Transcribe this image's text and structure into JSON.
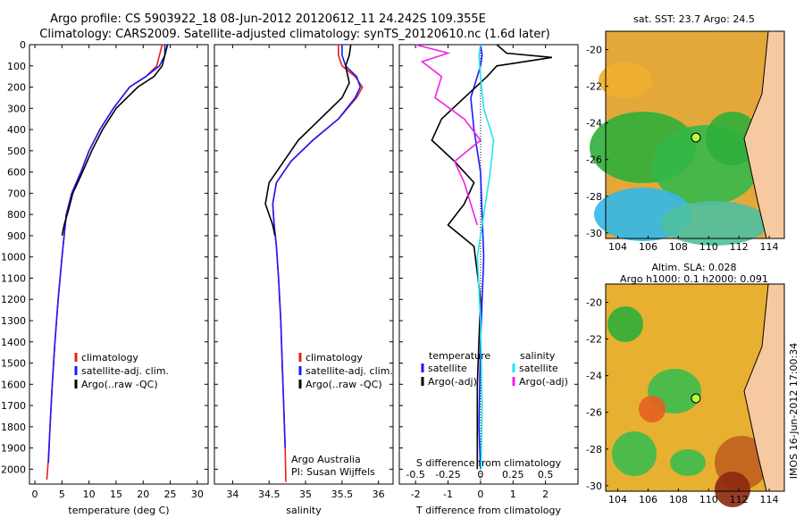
{
  "header": {
    "line1": "Argo profile: CS 5903922_18 08-Jun-2012 20120612_11 24.242S 109.355E",
    "line2": "Climatology: CARS2009. Satellite-adjusted climatology: synTS_20120610.nc (1.6d later)"
  },
  "side_text": "IMOS 16-Jun-2012 17:00:34",
  "colors": {
    "climatology": "#e8201a",
    "satellite": "#1a1aff",
    "argo": "#000000",
    "sat_salinity": "#22e6ee",
    "argo_salinity": "#f020e8"
  },
  "chart_data": [
    {
      "type": "line",
      "xlabel": "temperature (deg C)",
      "ylabel": "",
      "xlim": [
        -1,
        32
      ],
      "ylim": [
        2070,
        0
      ],
      "xticks": [
        "0",
        "5",
        "10",
        "15",
        "20",
        "25",
        "30"
      ],
      "xtick_values": [
        0,
        5,
        10,
        15,
        20,
        25,
        30
      ],
      "yticks": [
        "0",
        "100",
        "200",
        "300",
        "400",
        "500",
        "600",
        "700",
        "800",
        "900",
        "1000",
        "1100",
        "1200",
        "1300",
        "1400",
        "1500",
        "1600",
        "1700",
        "1800",
        "1900",
        "2000"
      ],
      "ytick_values": [
        0,
        100,
        200,
        300,
        400,
        500,
        600,
        700,
        800,
        900,
        1000,
        1100,
        1200,
        1300,
        1400,
        1500,
        1600,
        1700,
        1800,
        1900,
        2000
      ],
      "legend": [
        "climatology",
        "satellite-adj. clim.",
        "Argo(..raw -QC)"
      ],
      "series": [
        {
          "name": "climatology",
          "color": "#e8201a",
          "x": [
            23.5,
            23,
            22.5,
            20.5,
            17.5,
            14.5,
            12,
            10,
            8.5,
            6.8,
            5.8,
            5,
            4.3,
            3.7,
            3.2,
            2.8,
            2.5,
            2.2
          ],
          "y": [
            0,
            50,
            100,
            150,
            200,
            300,
            400,
            500,
            600,
            700,
            800,
            1000,
            1200,
            1400,
            1600,
            1800,
            1950,
            2050
          ]
        },
        {
          "name": "satellite-adj. clim.",
          "color": "#1a1aff",
          "x": [
            24,
            24,
            23,
            20.5,
            17.5,
            14.5,
            12,
            10,
            8.5,
            6.8,
            5.8,
            5,
            4.3,
            3.7,
            3.2,
            2.8,
            2.5
          ],
          "y": [
            0,
            50,
            100,
            150,
            200,
            300,
            400,
            500,
            600,
            700,
            800,
            1000,
            1200,
            1400,
            1600,
            1800,
            1970
          ]
        },
        {
          "name": "Argo(..raw -QC)",
          "color": "#000000",
          "x": [
            24.5,
            24,
            23.5,
            22,
            19,
            15,
            12.5,
            10.5,
            8.8,
            7,
            6.2,
            5.4,
            5
          ],
          "y": [
            0,
            50,
            100,
            150,
            200,
            300,
            400,
            500,
            600,
            700,
            780,
            850,
            900
          ]
        }
      ]
    },
    {
      "type": "line",
      "xlabel": "salinity",
      "xlim": [
        33.75,
        36.2
      ],
      "ylim": [
        2070,
        0
      ],
      "xticks": [
        "34",
        "34.5",
        "35",
        "35.5",
        "36"
      ],
      "xtick_values": [
        34,
        34.5,
        35,
        35.5,
        36
      ],
      "legend": [
        "climatology",
        "satellite-adj. clim.",
        "Argo(..raw -QC)"
      ],
      "annotation": [
        "Argo Australia",
        "PI: Susan Wijffels"
      ],
      "series": [
        {
          "name": "climatology",
          "color": "#e8201a",
          "x": [
            35.45,
            35.45,
            35.5,
            35.68,
            35.78,
            35.7,
            35.45,
            35.1,
            34.8,
            34.6,
            34.55,
            34.57,
            34.6,
            34.63,
            34.66,
            34.68,
            34.7,
            34.72,
            34.73
          ],
          "y": [
            0,
            50,
            100,
            150,
            200,
            250,
            350,
            450,
            550,
            650,
            750,
            850,
            950,
            1100,
            1300,
            1500,
            1700,
            1900,
            2060
          ]
        },
        {
          "name": "satellite-adj. clim.",
          "color": "#1a1aff",
          "x": [
            35.5,
            35.5,
            35.55,
            35.7,
            35.75,
            35.68,
            35.45,
            35.1,
            34.8,
            34.6,
            34.55,
            34.57,
            34.6,
            34.63,
            34.66,
            34.68,
            34.7,
            34.72
          ],
          "y": [
            0,
            50,
            100,
            150,
            200,
            250,
            350,
            450,
            550,
            650,
            750,
            850,
            950,
            1100,
            1300,
            1500,
            1700,
            1900
          ]
        },
        {
          "name": "Argo(..raw -QC)",
          "color": "#000000",
          "x": [
            35.62,
            35.6,
            35.55,
            35.6,
            35.5,
            35.2,
            34.9,
            34.7,
            34.5,
            34.45,
            34.5,
            34.55,
            34.58
          ],
          "y": [
            0,
            50,
            100,
            180,
            250,
            350,
            450,
            550,
            650,
            750,
            800,
            850,
            900
          ]
        }
      ]
    },
    {
      "type": "line",
      "xlabel": "T difference from climatology",
      "xlabel2": "S difference from climatology",
      "xlim": [
        -2.5,
        3
      ],
      "ylim": [
        2070,
        0
      ],
      "xticks": [
        "-2",
        "-1",
        "0",
        "1",
        "2"
      ],
      "xtick_values": [
        -2,
        -1,
        0,
        1,
        2
      ],
      "xticks_top": [
        "-0.5",
        "-0.25",
        "0",
        "0.25",
        "0.5"
      ],
      "legend": [
        "temperature",
        "satellite",
        "Argo(-adj)",
        "salinity",
        "satellite",
        "Argo(-adj)"
      ],
      "series": [
        {
          "name": "satellite",
          "color": "#1a1aff",
          "x": [
            0,
            0.05,
            0,
            -0.3,
            -0.2,
            0,
            0.05,
            0.1,
            0,
            -0.05,
            0
          ],
          "y": [
            0,
            50,
            100,
            250,
            400,
            600,
            800,
            1000,
            1400,
            1800,
            2000
          ]
        },
        {
          "name": "Argo(-adj)",
          "color": "#000000",
          "x": [
            0.5,
            0.8,
            2.2,
            0.5,
            0.2,
            -0.5,
            -1.2,
            -1.5,
            -0.8,
            -0.2,
            -0.5,
            -1,
            -0.2,
            0,
            -0.1,
            -0.1
          ],
          "y": [
            0,
            40,
            60,
            100,
            150,
            250,
            350,
            450,
            550,
            650,
            750,
            850,
            950,
            1200,
            1600,
            2000
          ]
        },
        {
          "name": "satellite",
          "color": "#22e6ee",
          "x": [
            0,
            -0.05,
            0,
            0.1,
            0.4,
            0.3,
            0.1,
            -0.1,
            0,
            0.05,
            0.02
          ],
          "y": [
            0,
            50,
            150,
            300,
            450,
            600,
            800,
            1000,
            1300,
            1700,
            2000
          ]
        },
        {
          "name": "Argo(-adj)",
          "color": "#f020e8",
          "x": [
            -2,
            -1,
            -1.8,
            -1.2,
            -1.4,
            -0.5,
            0,
            -0.8,
            -0.5,
            -0.3,
            -0.1
          ],
          "y": [
            0,
            40,
            80,
            150,
            250,
            350,
            450,
            550,
            650,
            750,
            850
          ]
        }
      ]
    }
  ],
  "maps": [
    {
      "title": "sat. SST: 23.7 Argo: 24.5",
      "xticks": [
        "104",
        "106",
        "108",
        "110",
        "112",
        "114"
      ],
      "yticks": [
        "-20",
        "-22",
        "-24",
        "-26",
        "-28",
        "-30"
      ]
    },
    {
      "title": "Altim. SLA: 0.028",
      "subtitle": "Argo h1000: 0.1 h2000: 0.091",
      "xticks": [
        "104",
        "106",
        "108",
        "110",
        "112",
        "114"
      ],
      "yticks": [
        "-20",
        "-22",
        "-24",
        "-26",
        "-28",
        "-30"
      ]
    }
  ]
}
